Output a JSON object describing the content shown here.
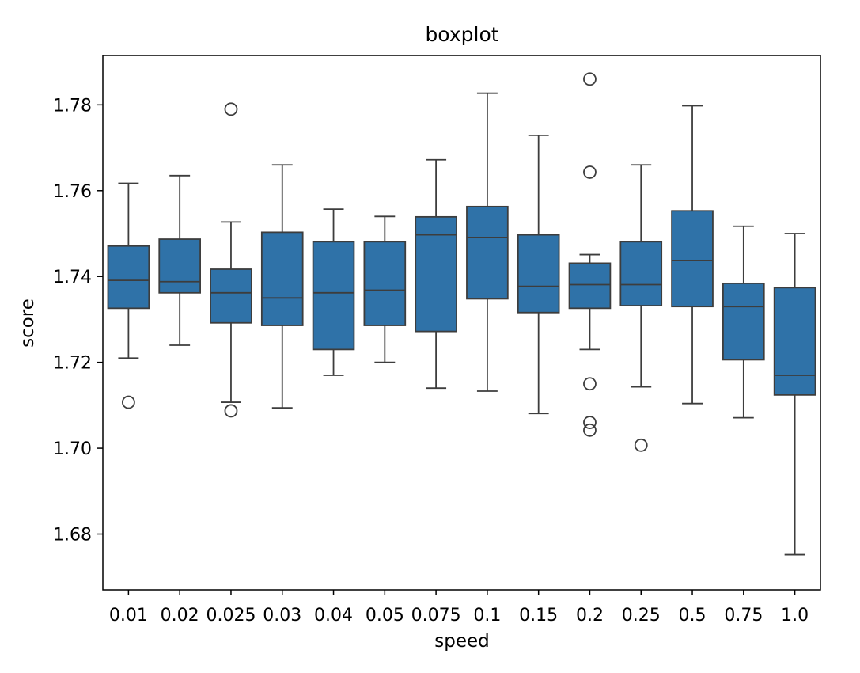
{
  "chart_data": {
    "type": "box",
    "title": "boxplot",
    "xlabel": "speed",
    "ylabel": "score",
    "ylim": [
      1.667,
      1.7915
    ],
    "yticks": [
      "1.68",
      "1.70",
      "1.72",
      "1.74",
      "1.76",
      "1.78"
    ],
    "grid": false,
    "box_color": "#2f72a8",
    "edge_color": "#3d3d3d",
    "categories": [
      "0.01",
      "0.02",
      "0.025",
      "0.03",
      "0.04",
      "0.05",
      "0.075",
      "0.1",
      "0.15",
      "0.2",
      "0.25",
      "0.5",
      "0.75",
      "1.0"
    ],
    "boxes": [
      {
        "whisker_low": 1.721,
        "q1": 1.7326,
        "median": 1.7391,
        "q3": 1.7471,
        "whisker_high": 1.7617,
        "outliers": [
          1.7107
        ]
      },
      {
        "whisker_low": 1.724,
        "q1": 1.7362,
        "median": 1.7388,
        "q3": 1.7487,
        "whisker_high": 1.7635,
        "outliers": []
      },
      {
        "whisker_low": 1.7107,
        "q1": 1.7292,
        "median": 1.7362,
        "q3": 1.7417,
        "whisker_high": 1.7527,
        "outliers": [
          1.779,
          1.7087
        ]
      },
      {
        "whisker_low": 1.7094,
        "q1": 1.7286,
        "median": 1.735,
        "q3": 1.7503,
        "whisker_high": 1.766,
        "outliers": []
      },
      {
        "whisker_low": 1.717,
        "q1": 1.723,
        "median": 1.7362,
        "q3": 1.7481,
        "whisker_high": 1.7557,
        "outliers": []
      },
      {
        "whisker_low": 1.72,
        "q1": 1.7286,
        "median": 1.7368,
        "q3": 1.7481,
        "whisker_high": 1.754,
        "outliers": []
      },
      {
        "whisker_low": 1.714,
        "q1": 1.7272,
        "median": 1.7497,
        "q3": 1.7539,
        "whisker_high": 1.7672,
        "outliers": []
      },
      {
        "whisker_low": 1.7133,
        "q1": 1.7348,
        "median": 1.7491,
        "q3": 1.7563,
        "whisker_high": 1.7827,
        "outliers": []
      },
      {
        "whisker_low": 1.7081,
        "q1": 1.7316,
        "median": 1.7377,
        "q3": 1.7497,
        "whisker_high": 1.7729,
        "outliers": []
      },
      {
        "whisker_low": 1.723,
        "q1": 1.7326,
        "median": 1.7381,
        "q3": 1.7431,
        "whisker_high": 1.7451,
        "outliers": [
          1.786,
          1.7643,
          1.715,
          1.706,
          1.7042
        ]
      },
      {
        "whisker_low": 1.7143,
        "q1": 1.7332,
        "median": 1.7381,
        "q3": 1.7481,
        "whisker_high": 1.766,
        "outliers": [
          1.7007
        ]
      },
      {
        "whisker_low": 1.7104,
        "q1": 1.733,
        "median": 1.7437,
        "q3": 1.7553,
        "whisker_high": 1.7798,
        "outliers": []
      },
      {
        "whisker_low": 1.7071,
        "q1": 1.7206,
        "median": 1.733,
        "q3": 1.7384,
        "whisker_high": 1.7517,
        "outliers": []
      },
      {
        "whisker_low": 1.6752,
        "q1": 1.7124,
        "median": 1.717,
        "q3": 1.7374,
        "whisker_high": 1.75,
        "outliers": []
      }
    ]
  }
}
